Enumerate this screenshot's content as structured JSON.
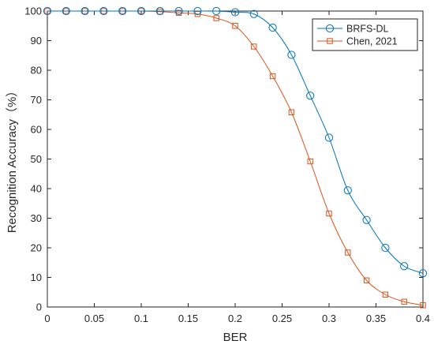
{
  "chart_data": {
    "type": "line",
    "xlabel": "BER",
    "ylabel": "Recognition Accuracy（%）",
    "xlim": [
      0,
      0.4
    ],
    "ylim": [
      0,
      100
    ],
    "xticks": [
      0,
      0.05,
      0.1,
      0.15,
      0.2,
      0.25,
      0.3,
      0.35,
      0.4
    ],
    "xtick_labels": [
      "0",
      "0.05",
      "0.1",
      "0.15",
      "0.2",
      "0.25",
      "0.3",
      "0.35",
      "0.4"
    ],
    "yticks": [
      0,
      10,
      20,
      30,
      40,
      50,
      60,
      70,
      80,
      90,
      100
    ],
    "ytick_labels": [
      "0",
      "10",
      "20",
      "30",
      "40",
      "50",
      "60",
      "70",
      "80",
      "90",
      "100"
    ],
    "grid": false,
    "legend_position": "top-right",
    "x": [
      0,
      0.02,
      0.04,
      0.06,
      0.08,
      0.1,
      0.12,
      0.14,
      0.16,
      0.18,
      0.2,
      0.22,
      0.24,
      0.26,
      0.28,
      0.3,
      0.32,
      0.34,
      0.36,
      0.38,
      0.4
    ],
    "series": [
      {
        "name": "BRFS-DL",
        "marker": "circle",
        "color": "#0072BD",
        "values": [
          100,
          100,
          100,
          100,
          100,
          100,
          100,
          100,
          100,
          100,
          99.6,
          99.0,
          94.4,
          85.2,
          71.4,
          57.2,
          39.4,
          29.4,
          20.0,
          13.8,
          11.4
        ]
      },
      {
        "name": "Chen, 2021",
        "marker": "square",
        "color": "#D95319",
        "values": [
          100,
          100,
          100,
          100,
          100,
          100,
          99.8,
          99.4,
          99.0,
          97.6,
          95.0,
          88.0,
          78.0,
          65.8,
          49.2,
          31.6,
          18.4,
          9.0,
          4.2,
          1.8,
          0.6
        ]
      }
    ]
  }
}
